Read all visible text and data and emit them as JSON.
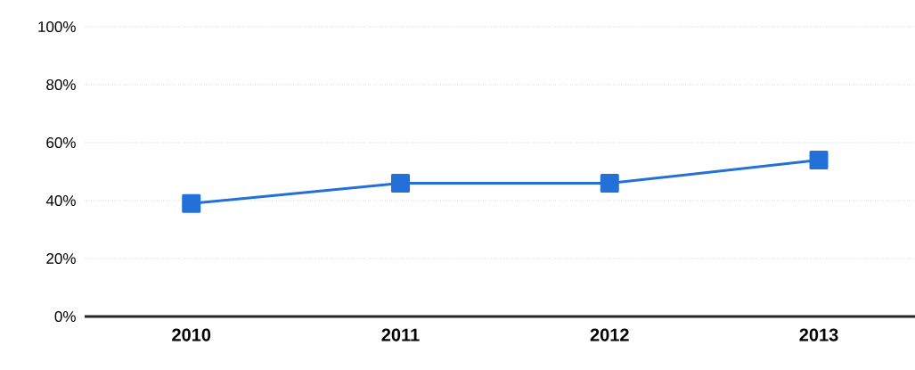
{
  "chart_data": {
    "type": "line",
    "categories": [
      "2010",
      "2011",
      "2012",
      "2013"
    ],
    "series": [
      {
        "color": "#2370d8",
        "values": [
          39,
          46,
          46,
          54
        ]
      }
    ],
    "ylim": [
      0,
      100
    ],
    "yticks": [
      {
        "value": 0,
        "label": "0%"
      },
      {
        "value": 20,
        "label": "20%"
      },
      {
        "value": 40,
        "label": "40%"
      },
      {
        "value": 60,
        "label": "60%"
      },
      {
        "value": 80,
        "label": "80%"
      },
      {
        "value": 100,
        "label": "100%"
      }
    ],
    "grid": "y",
    "marker": "square",
    "line_style": "solid"
  }
}
